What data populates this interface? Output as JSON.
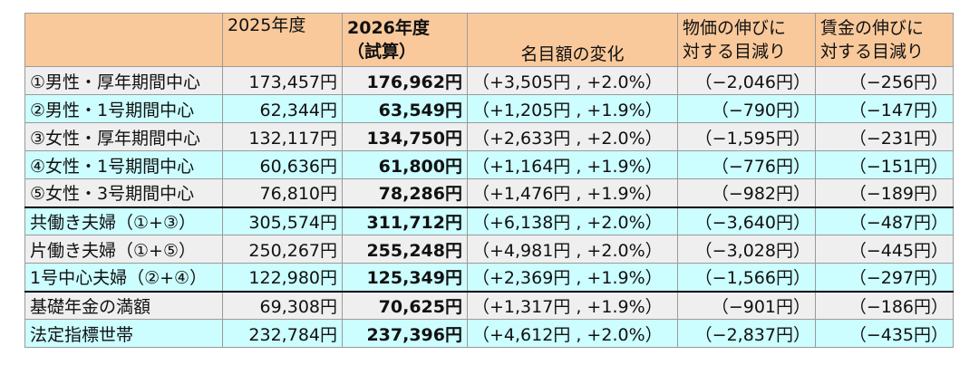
{
  "header": {
    "label": "",
    "col_2025": "2025年度",
    "col_2026_line1": "2026年度",
    "col_2026_line2": "（試算）",
    "col_change": "名目額の変化",
    "col_price_line1": "物価の伸びに",
    "col_price_line2": "対する目減り",
    "col_wage_line1": "賃金の伸びに",
    "col_wage_line2": "対する目減り"
  },
  "rows": [
    {
      "label": "①男性・厚年期間中心",
      "y2025": "173,457円",
      "y2026": "176,962円",
      "change": "（+3,505円 , +2.0%）",
      "price": "（−2,046円）",
      "wage": "（−256円）"
    },
    {
      "label": "②男性・1号期間中心",
      "y2025": "62,344円",
      "y2026": "63,549円",
      "change": "（+1,205円 , +1.9%）",
      "price": "（−790円）",
      "wage": "（−147円）"
    },
    {
      "label": "③女性・厚年期間中心",
      "y2025": "132,117円",
      "y2026": "134,750円",
      "change": "（+2,633円 , +2.0%）",
      "price": "（−1,595円）",
      "wage": "（−231円）"
    },
    {
      "label": "④女性・1号期間中心",
      "y2025": "60,636円",
      "y2026": "61,800円",
      "change": "（+1,164円 , +1.9%）",
      "price": "（−776円）",
      "wage": "（−151円）"
    },
    {
      "label": "⑤女性・3号期間中心",
      "y2025": "76,810円",
      "y2026": "78,286円",
      "change": "（+1,476円 , +1.9%）",
      "price": "（−982円）",
      "wage": "（−189円）"
    },
    {
      "label": "共働き夫婦（①+③）",
      "y2025": "305,574円",
      "y2026": "311,712円",
      "change": "（+6,138円 , +2.0%）",
      "price": "（−3,640円）",
      "wage": "（−487円）"
    },
    {
      "label": "片働き夫婦（①+⑤）",
      "y2025": "250,267円",
      "y2026": "255,248円",
      "change": "（+4,981円 , +2.0%）",
      "price": "（−3,028円）",
      "wage": "（−445円）"
    },
    {
      "label": "1号中心夫婦（②+④）",
      "y2025": "122,980円",
      "y2026": "125,349円",
      "change": "（+2,369円 , +1.9%）",
      "price": "（−1,566円）",
      "wage": "（−297円）"
    },
    {
      "label": "基礎年金の満額",
      "y2025": "69,308円",
      "y2026": "70,625円",
      "change": "（+1,317円 , +1.9%）",
      "price": "（−901円）",
      "wage": "（−186円）"
    },
    {
      "label": "法定指標世帯",
      "y2025": "232,784円",
      "y2026": "237,396円",
      "change": "（+4,612円 , +2.0%）",
      "price": "（−2,837円）",
      "wage": "（−435円）"
    }
  ],
  "colors": {
    "header_bg": "#f9c99b",
    "row_gray": "#efefef",
    "row_cyan": "#ccfdff"
  }
}
